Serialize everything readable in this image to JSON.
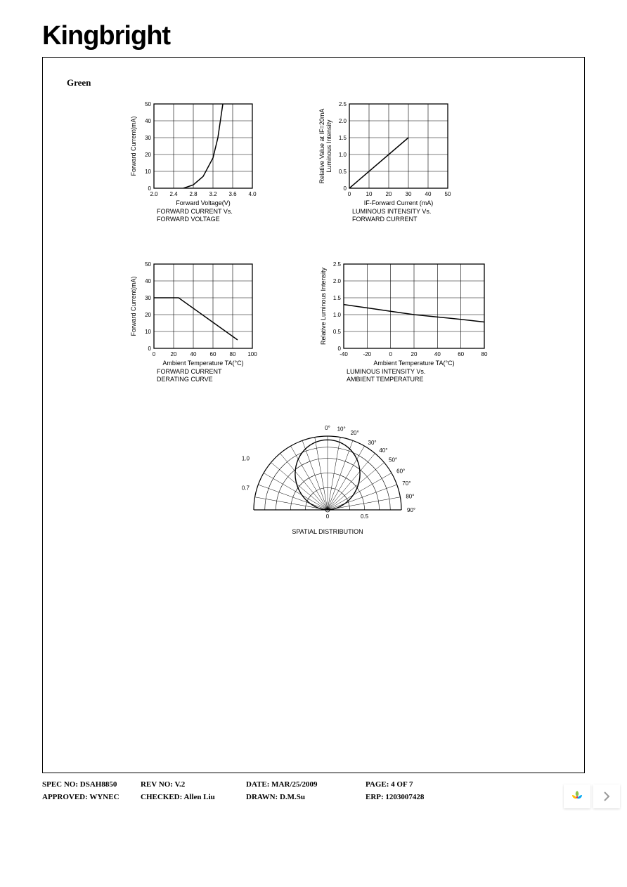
{
  "brand": "Kingbright",
  "section_title": "Green",
  "colors": {
    "bg": "#ffffff",
    "line": "#000000",
    "grid": "#000000",
    "text": "#000000"
  },
  "chart1": {
    "type": "line",
    "ylabel": "Forward Current(mA)",
    "xlabel": "Forward Voltage(V)",
    "subtitle1": "FORWARD CURRENT Vs.",
    "subtitle2": "FORWARD VOLTAGE",
    "xlim": [
      2.0,
      4.0
    ],
    "xtick_step": 0.4,
    "xticks": [
      "2.0",
      "2.4",
      "2.8",
      "3.2",
      "3.6",
      "4.0"
    ],
    "ylim": [
      0,
      50
    ],
    "ytick_step": 10,
    "yticks": [
      "0",
      "10",
      "20",
      "30",
      "40",
      "50"
    ],
    "data": [
      {
        "x": 2.6,
        "y": 0
      },
      {
        "x": 2.8,
        "y": 2
      },
      {
        "x": 3.0,
        "y": 7
      },
      {
        "x": 3.2,
        "y": 18
      },
      {
        "x": 3.3,
        "y": 30
      },
      {
        "x": 3.4,
        "y": 50
      }
    ],
    "line_width": 1.5,
    "font_size_label": 9,
    "font_size_tick": 8
  },
  "chart2": {
    "type": "line",
    "ylabel_l1": "Luminous Intensity",
    "ylabel_l2": "Relative Value at IF=20mA",
    "xlabel": "IF-Forward Current (mA)",
    "subtitle1": "LUMINOUS INTENSITY Vs.",
    "subtitle2": "FORWARD CURRENT",
    "xlim": [
      0,
      50
    ],
    "xtick_step": 10,
    "xticks": [
      "0",
      "10",
      "20",
      "30",
      "40",
      "50"
    ],
    "ylim": [
      0,
      2.5
    ],
    "ytick_step": 0.5,
    "yticks": [
      "0",
      "0.5",
      "1.0",
      "1.5",
      "2.0",
      "2.5"
    ],
    "data": [
      {
        "x": 0,
        "y": 0
      },
      {
        "x": 30,
        "y": 1.5
      }
    ],
    "line_width": 1.5,
    "font_size_label": 9,
    "font_size_tick": 8
  },
  "chart3": {
    "type": "line",
    "ylabel": "Forward Current(mA)",
    "xlabel": "Ambient Temperature TA(°C)",
    "subtitle1": "FORWARD CURRENT",
    "subtitle2": "DERATING CURVE",
    "xlim": [
      0,
      100
    ],
    "xtick_step": 20,
    "xticks": [
      "0",
      "20",
      "40",
      "60",
      "80",
      "100"
    ],
    "ylim": [
      0,
      50
    ],
    "ytick_step": 10,
    "yticks": [
      "0",
      "10",
      "20",
      "30",
      "40",
      "50"
    ],
    "data": [
      {
        "x": 0,
        "y": 30
      },
      {
        "x": 25,
        "y": 30
      },
      {
        "x": 85,
        "y": 5
      }
    ],
    "line_width": 1.5,
    "font_size_label": 9,
    "font_size_tick": 8
  },
  "chart4": {
    "type": "line",
    "ylabel": "Relative Luminous Intensity",
    "xlabel": "Ambient Temperature TA(°C)",
    "subtitle1": "LUMINOUS INTENSITY Vs.",
    "subtitle2": "AMBIENT TEMPERATURE",
    "xlim": [
      -40,
      80
    ],
    "xtick_step": 20,
    "xticks": [
      "-40",
      "-20",
      "0",
      "20",
      "40",
      "60",
      "80"
    ],
    "ylim": [
      0,
      2.5
    ],
    "ytick_step": 0.5,
    "yticks": [
      "0",
      "0.5",
      "1.0",
      "1.5",
      "2.0",
      "2.5"
    ],
    "data": [
      {
        "x": -40,
        "y": 1.3
      },
      {
        "x": -20,
        "y": 1.2
      },
      {
        "x": 0,
        "y": 1.1
      },
      {
        "x": 20,
        "y": 1.0
      },
      {
        "x": 40,
        "y": 0.93
      },
      {
        "x": 60,
        "y": 0.86
      },
      {
        "x": 80,
        "y": 0.78
      }
    ],
    "line_width": 1.5,
    "font_size_label": 9,
    "font_size_tick": 8
  },
  "polar": {
    "type": "polar",
    "title": "SPATIAL DISTRIBUTION",
    "angle_labels_top": [
      "0°",
      "10°",
      "20°"
    ],
    "angle_labels_right": [
      "30°",
      "40°",
      "50°",
      "60°",
      "70°",
      "80°",
      "90°"
    ],
    "radial_labels_left": [
      "1.0",
      "0.7"
    ],
    "radial_labels_bottom": [
      "0",
      "0.5"
    ],
    "beam_half_angle_deg": 55,
    "line_width": 1.2,
    "font_size_label": 9,
    "font_size_tick": 8
  },
  "footer": {
    "spec_no_label": "SPEC NO:",
    "spec_no": "DSAH8850",
    "rev_no_label": "REV NO:",
    "rev_no": "V.2",
    "date_label": "DATE:",
    "date": "MAR/25/2009",
    "page_label": "PAGE:",
    "page": "4 OF 7",
    "approved_label": "APPROVED:",
    "approved": "WYNEC",
    "checked_label": "CHECKED:",
    "checked": "Allen Liu",
    "drawn_label": "DRAWN:",
    "drawn": "D.M.Su",
    "erp_label": "ERP:",
    "erp": "1203007428"
  }
}
